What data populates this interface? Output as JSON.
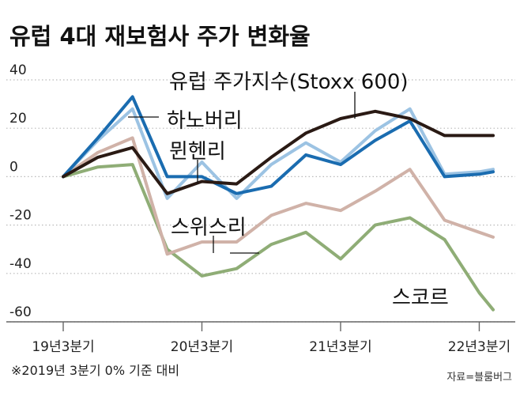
{
  "title": "유럽 4대 재보험사 주가 변화율",
  "footnote": "※2019년 3분기 0% 기준 대비",
  "source": "자료=블룸버그",
  "chart_data": {
    "type": "line",
    "title": "유럽 4대 재보험사 주가 변화율",
    "x": [
      0,
      1,
      2,
      3,
      4,
      5,
      6,
      7,
      8,
      9,
      10,
      11,
      12
    ],
    "x_tick_positions": [
      0,
      4,
      8,
      12
    ],
    "x_tick_labels": [
      "19년3분기",
      "20년3분기",
      "21년3분기",
      "22년3분기"
    ],
    "y_ticks": [
      40,
      20,
      0,
      -20,
      -40,
      -60
    ],
    "y_tick_labels": [
      "40",
      "20",
      "0",
      "-20",
      "-40",
      "-60"
    ],
    "xlim": [
      0,
      12.4
    ],
    "ylim": [
      -60,
      40
    ],
    "grid": "horizontal-dotted",
    "series": [
      {
        "name": "스코르",
        "color": "#8fad76",
        "x": [
          0,
          1,
          2,
          3,
          4,
          5,
          6,
          7,
          8,
          9,
          10,
          11,
          12,
          12.4
        ],
        "values": [
          0,
          4,
          5,
          -30,
          -41,
          -38,
          -28,
          -23,
          -34,
          -20,
          -17,
          -26,
          -48,
          -55
        ]
      },
      {
        "name": "스위스리",
        "color": "#d0b2a8",
        "x": [
          0,
          1,
          2,
          3,
          4,
          5,
          6,
          7,
          8,
          9,
          10,
          11,
          12,
          12.4
        ],
        "values": [
          0,
          10,
          16,
          -32,
          -27,
          -27,
          -16,
          -11,
          -14,
          -6,
          3,
          -18,
          -23,
          -25
        ]
      },
      {
        "name": "뮌헨리",
        "color": "#9cc3e3",
        "x": [
          0,
          1,
          2,
          3,
          4,
          5,
          6,
          7,
          8,
          9,
          10,
          11,
          12,
          12.4
        ],
        "values": [
          0,
          15,
          28,
          -9,
          6,
          -9,
          5,
          14,
          6,
          19,
          28,
          1,
          2,
          3
        ]
      },
      {
        "name": "하노버리",
        "color": "#1a6cb0",
        "x": [
          0,
          1,
          2,
          3,
          4,
          5,
          6,
          7,
          8,
          9,
          10,
          11,
          12,
          12.4
        ],
        "values": [
          0,
          16,
          33,
          0,
          0,
          -7,
          -4,
          9,
          5,
          15,
          23,
          0,
          1,
          2
        ]
      },
      {
        "name": "유럽 주가지수(Stoxx 600)",
        "color": "#2a1a14",
        "x": [
          0,
          1,
          2,
          3,
          4,
          5,
          6,
          7,
          8,
          9,
          10,
          11,
          12,
          12.4
        ],
        "values": [
          0,
          8,
          12,
          -7,
          -2,
          -3,
          8,
          18,
          24,
          27,
          24,
          17,
          17,
          17
        ]
      }
    ]
  }
}
